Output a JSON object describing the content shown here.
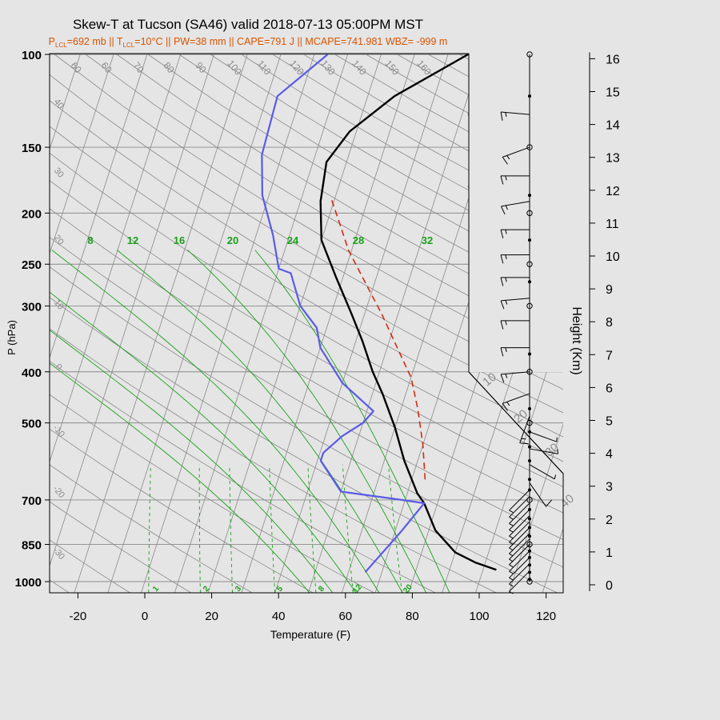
{
  "chart_data": {
    "type": "line",
    "title": "Skew-T at Tucson (SA46) valid 2018-07-13 05:00PM MST",
    "subtitle": {
      "p_lcl": "692 mb",
      "t_lcl": "10°C",
      "pw": "38 mm",
      "cape": "791 J",
      "mcape": "741.981",
      "wbz": "-999 m"
    },
    "xlabel": "Temperature (F)",
    "ylabel": "P (hPa)",
    "ylabel2": "Height (Km)",
    "xlim": [
      -28,
      126
    ],
    "ylim": [
      1050,
      100
    ],
    "x_ticks": [
      -20,
      0,
      20,
      40,
      60,
      80,
      100,
      120
    ],
    "p_ticks": [
      100,
      150,
      200,
      250,
      300,
      400,
      500,
      700,
      850,
      1000
    ],
    "height_ticks": [
      0,
      1,
      2,
      3,
      4,
      5,
      6,
      7,
      8,
      9,
      10,
      11,
      12,
      13,
      14,
      15,
      16
    ],
    "isotherm_labels_top": [
      "60",
      "60",
      "70",
      "80",
      "90",
      "100",
      "110",
      "120",
      "130",
      "140",
      "150",
      "160"
    ],
    "isotherm_labels_left": [
      "40",
      "30",
      "20",
      "10",
      "0",
      "-10",
      "-20",
      "-30"
    ],
    "isotherm_labels_right": [
      "30",
      "20",
      "10",
      "0"
    ],
    "isotherm_labels_inset": [
      "10",
      "20",
      "30",
      "40"
    ],
    "moist_adiabat_labels": [
      "8",
      "12",
      "16",
      "20",
      "24",
      "28",
      "32"
    ],
    "mixing_ratio_labels": [
      "1",
      "2",
      "3",
      "5",
      "8",
      "12",
      "20"
    ],
    "colors": {
      "temperature": "#000000",
      "dewpoint": "#5a5ae8",
      "parcel": "#d42a10",
      "subtitle": "#d75400",
      "moist_adiabat": "#19a019",
      "mixing_ratio": "#19a019",
      "grid": "#8a8a8a"
    },
    "series": [
      {
        "role": "temperature",
        "points": [
          [
            104,
            950
          ],
          [
            97,
            920
          ],
          [
            90,
            880
          ],
          [
            82,
            800
          ],
          [
            76,
            710
          ],
          [
            73,
            680
          ],
          [
            66,
            590
          ],
          [
            60,
            510
          ],
          [
            53,
            440
          ],
          [
            48,
            400
          ],
          [
            42,
            350
          ],
          [
            36,
            310
          ],
          [
            28,
            265
          ],
          [
            20,
            225
          ],
          [
            16,
            190
          ],
          [
            14,
            160
          ],
          [
            18,
            140
          ],
          [
            28,
            120
          ],
          [
            46,
            100
          ]
        ]
      },
      {
        "role": "dewpoint",
        "points": [
          [
            65,
            960
          ],
          [
            72,
            800
          ],
          [
            76,
            710
          ],
          [
            69,
            700
          ],
          [
            50,
            675
          ],
          [
            41,
            590
          ],
          [
            41,
            570
          ],
          [
            45,
            530
          ],
          [
            50,
            500
          ],
          [
            52,
            475
          ],
          [
            40,
            420
          ],
          [
            30,
            360
          ],
          [
            27,
            330
          ],
          [
            20,
            300
          ],
          [
            14,
            260
          ],
          [
            10,
            255
          ],
          [
            5,
            220
          ],
          [
            -2,
            185
          ],
          [
            -6,
            155
          ],
          [
            -7,
            120
          ],
          [
            4,
            100
          ]
        ]
      },
      {
        "role": "parcel",
        "points": [
          [
            74,
            640
          ],
          [
            70,
            550
          ],
          [
            65,
            470
          ],
          [
            60,
            410
          ],
          [
            53,
            360
          ],
          [
            45,
            310
          ],
          [
            37,
            270
          ],
          [
            29,
            235
          ],
          [
            24,
            210
          ],
          [
            19,
            188
          ]
        ]
      }
    ],
    "wind_barbs": [
      {
        "p": 955,
        "dir": 225,
        "kt": 5
      },
      {
        "p": 925,
        "dir": 225,
        "kt": 5
      },
      {
        "p": 900,
        "dir": 225,
        "kt": 5
      },
      {
        "p": 875,
        "dir": 225,
        "kt": 5
      },
      {
        "p": 850,
        "dir": 225,
        "kt": 5
      },
      {
        "p": 830,
        "dir": 225,
        "kt": 5
      },
      {
        "p": 810,
        "dir": 225,
        "kt": 5
      },
      {
        "p": 790,
        "dir": 225,
        "kt": 5
      },
      {
        "p": 770,
        "dir": 225,
        "kt": 5
      },
      {
        "p": 750,
        "dir": 225,
        "kt": 5
      },
      {
        "p": 730,
        "dir": 225,
        "kt": 5
      },
      {
        "p": 710,
        "dir": 225,
        "kt": 5
      },
      {
        "p": 690,
        "dir": 225,
        "kt": 5
      },
      {
        "p": 670,
        "dir": 225,
        "kt": 5
      },
      {
        "p": 650,
        "dir": 145,
        "kt": 10
      },
      {
        "p": 600,
        "dir": 120,
        "kt": 5
      },
      {
        "p": 560,
        "dir": 100,
        "kt": 5
      },
      {
        "p": 520,
        "dir": 110,
        "kt": 5
      },
      {
        "p": 485,
        "dir": 200,
        "kt": 15
      },
      {
        "p": 440,
        "dir": 250,
        "kt": 15
      },
      {
        "p": 400,
        "dir": 265,
        "kt": 15
      },
      {
        "p": 360,
        "dir": 270,
        "kt": 15
      },
      {
        "p": 320,
        "dir": 270,
        "kt": 15
      },
      {
        "p": 290,
        "dir": 265,
        "kt": 15
      },
      {
        "p": 265,
        "dir": 270,
        "kt": 15
      },
      {
        "p": 240,
        "dir": 270,
        "kt": 15
      },
      {
        "p": 215,
        "dir": 270,
        "kt": 15
      },
      {
        "p": 190,
        "dir": 260,
        "kt": 15
      },
      {
        "p": 170,
        "dir": 270,
        "kt": 15
      },
      {
        "p": 150,
        "dir": 250,
        "kt": 15
      },
      {
        "p": 130,
        "dir": 275,
        "kt": 15
      }
    ],
    "barb_markers": [
      {
        "p": 1000,
        "type": "circle"
      },
      {
        "p": 990,
        "type": "dot"
      },
      {
        "p": 960,
        "type": "dot"
      },
      {
        "p": 930,
        "type": "dot"
      },
      {
        "p": 900,
        "type": "dot"
      },
      {
        "p": 875,
        "type": "dot"
      },
      {
        "p": 850,
        "type": "circle"
      },
      {
        "p": 820,
        "type": "dot"
      },
      {
        "p": 790,
        "type": "dot"
      },
      {
        "p": 760,
        "type": "dot"
      },
      {
        "p": 730,
        "type": "dot"
      },
      {
        "p": 700,
        "type": "circle"
      },
      {
        "p": 670,
        "type": "dot"
      },
      {
        "p": 640,
        "type": "dot"
      },
      {
        "p": 590,
        "type": "dot"
      },
      {
        "p": 555,
        "type": "dot"
      },
      {
        "p": 520,
        "type": "dot"
      },
      {
        "p": 500,
        "type": "circle"
      },
      {
        "p": 470,
        "type": "dot"
      },
      {
        "p": 400,
        "type": "circle"
      },
      {
        "p": 370,
        "type": "dot"
      },
      {
        "p": 300,
        "type": "circle"
      },
      {
        "p": 270,
        "type": "dot"
      },
      {
        "p": 250,
        "type": "circle"
      },
      {
        "p": 225,
        "type": "dot"
      },
      {
        "p": 200,
        "type": "circle"
      },
      {
        "p": 185,
        "type": "dot"
      },
      {
        "p": 150,
        "type": "circle"
      },
      {
        "p": 120,
        "type": "dot"
      },
      {
        "p": 100,
        "type": "circle"
      }
    ]
  }
}
